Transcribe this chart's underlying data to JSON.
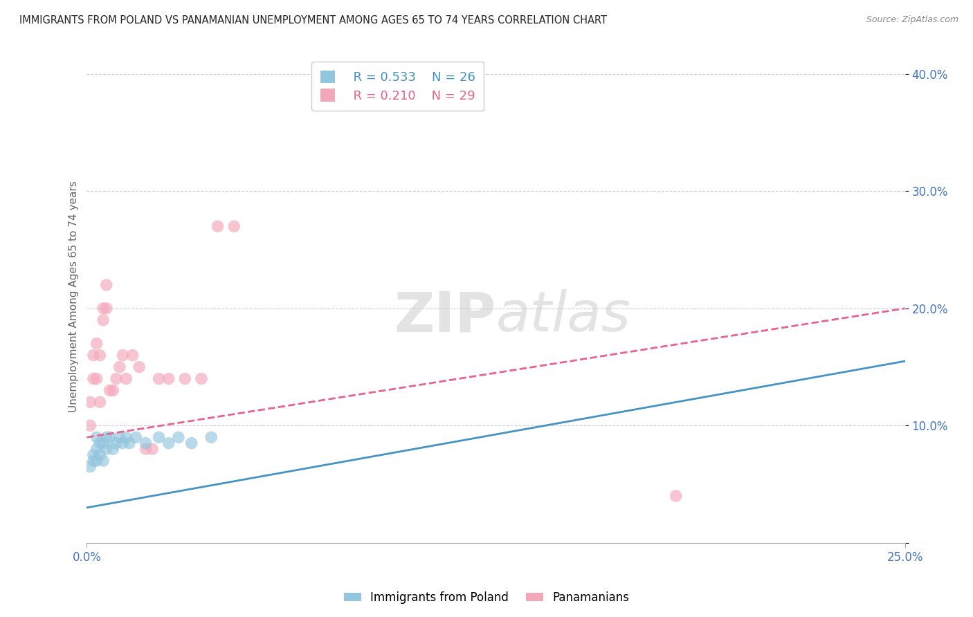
{
  "title": "IMMIGRANTS FROM POLAND VS PANAMANIAN UNEMPLOYMENT AMONG AGES 65 TO 74 YEARS CORRELATION CHART",
  "source": "Source: ZipAtlas.com",
  "ylabel": "Unemployment Among Ages 65 to 74 years",
  "xlim": [
    0.0,
    0.25
  ],
  "ylim": [
    0.0,
    0.42
  ],
  "x_tick_labels": [
    "0.0%",
    "25.0%"
  ],
  "y_tick_labels": [
    "",
    "10.0%",
    "20.0%",
    "30.0%",
    "40.0%"
  ],
  "watermark_zip": "ZIP",
  "watermark_atlas": "atlas",
  "legend_r1": "R = 0.533",
  "legend_n1": "N = 26",
  "legend_r2": "R = 0.210",
  "legend_n2": "N = 29",
  "color_blue": "#92C5DE",
  "color_pink": "#F4A7B9",
  "color_blue_line": "#4393C3",
  "color_pink_line": "#E8638C",
  "blue_scatter_x": [
    0.001,
    0.002,
    0.002,
    0.003,
    0.003,
    0.003,
    0.004,
    0.004,
    0.005,
    0.005,
    0.006,
    0.006,
    0.007,
    0.008,
    0.009,
    0.01,
    0.011,
    0.012,
    0.013,
    0.015,
    0.018,
    0.022,
    0.025,
    0.028,
    0.032,
    0.038
  ],
  "blue_scatter_y": [
    0.065,
    0.07,
    0.075,
    0.07,
    0.08,
    0.09,
    0.075,
    0.085,
    0.07,
    0.085,
    0.08,
    0.09,
    0.09,
    0.08,
    0.085,
    0.09,
    0.085,
    0.09,
    0.085,
    0.09,
    0.085,
    0.09,
    0.085,
    0.09,
    0.085,
    0.09
  ],
  "pink_scatter_x": [
    0.001,
    0.001,
    0.002,
    0.002,
    0.003,
    0.003,
    0.004,
    0.004,
    0.005,
    0.005,
    0.006,
    0.006,
    0.007,
    0.008,
    0.009,
    0.01,
    0.011,
    0.012,
    0.014,
    0.016,
    0.018,
    0.02,
    0.022,
    0.025,
    0.03,
    0.035,
    0.04,
    0.045,
    0.18
  ],
  "pink_scatter_y": [
    0.1,
    0.12,
    0.14,
    0.16,
    0.14,
    0.17,
    0.12,
    0.16,
    0.19,
    0.2,
    0.2,
    0.22,
    0.13,
    0.13,
    0.14,
    0.15,
    0.16,
    0.14,
    0.16,
    0.15,
    0.08,
    0.08,
    0.14,
    0.14,
    0.14,
    0.14,
    0.27,
    0.27,
    0.04
  ],
  "blue_line_x": [
    0.0,
    0.25
  ],
  "blue_line_y": [
    0.03,
    0.155
  ],
  "pink_line_x": [
    0.0,
    0.25
  ],
  "pink_line_y": [
    0.09,
    0.2
  ]
}
